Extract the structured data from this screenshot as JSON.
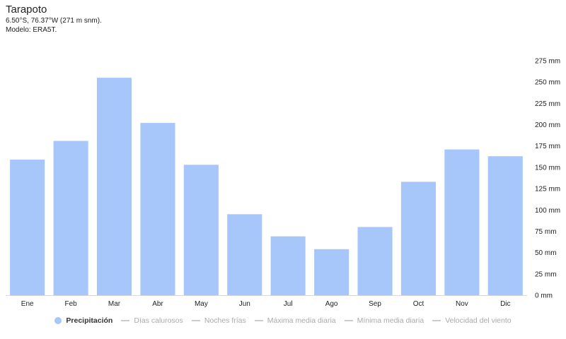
{
  "header": {
    "title": "Tarapoto",
    "coords": "6.50°S, 76.37°W (271 m snm).",
    "model": "Modelo: ERA5T."
  },
  "chart_data": {
    "type": "bar",
    "categories": [
      "Ene",
      "Feb",
      "Mar",
      "Abr",
      "May",
      "Jun",
      "Jul",
      "Ago",
      "Sep",
      "Oct",
      "Nov",
      "Dic"
    ],
    "series": [
      {
        "name": "Precipitación",
        "color": "#a7c7fb",
        "values": [
          159,
          181,
          255,
          202,
          153,
          95,
          69,
          54,
          80,
          133,
          171,
          163
        ]
      }
    ],
    "y_axis": {
      "position": "right",
      "ylim": [
        0,
        275
      ],
      "ticks": [
        0,
        25,
        50,
        75,
        100,
        125,
        150,
        175,
        200,
        225,
        250,
        275
      ],
      "tick_labels": [
        "0 mm",
        "25 mm",
        "50 mm",
        "75 mm",
        "100 mm",
        "125 mm",
        "150 mm",
        "175 mm",
        "200 mm",
        "225 mm",
        "250 mm",
        "275 mm"
      ]
    },
    "grid": false,
    "legend_position": "bottom"
  },
  "legend": {
    "items": [
      {
        "label": "Precipitación",
        "style": "dot",
        "color": "#a7c7fb",
        "active": true
      },
      {
        "label": "Días calurosos",
        "style": "dashed",
        "active": false
      },
      {
        "label": "Noches frías",
        "style": "dashed",
        "active": false
      },
      {
        "label": "Máxima media diaria",
        "style": "line",
        "active": false
      },
      {
        "label": "Mínima media diaria",
        "style": "line",
        "active": false
      },
      {
        "label": "Velocidad del viento",
        "style": "line",
        "active": false
      }
    ]
  }
}
